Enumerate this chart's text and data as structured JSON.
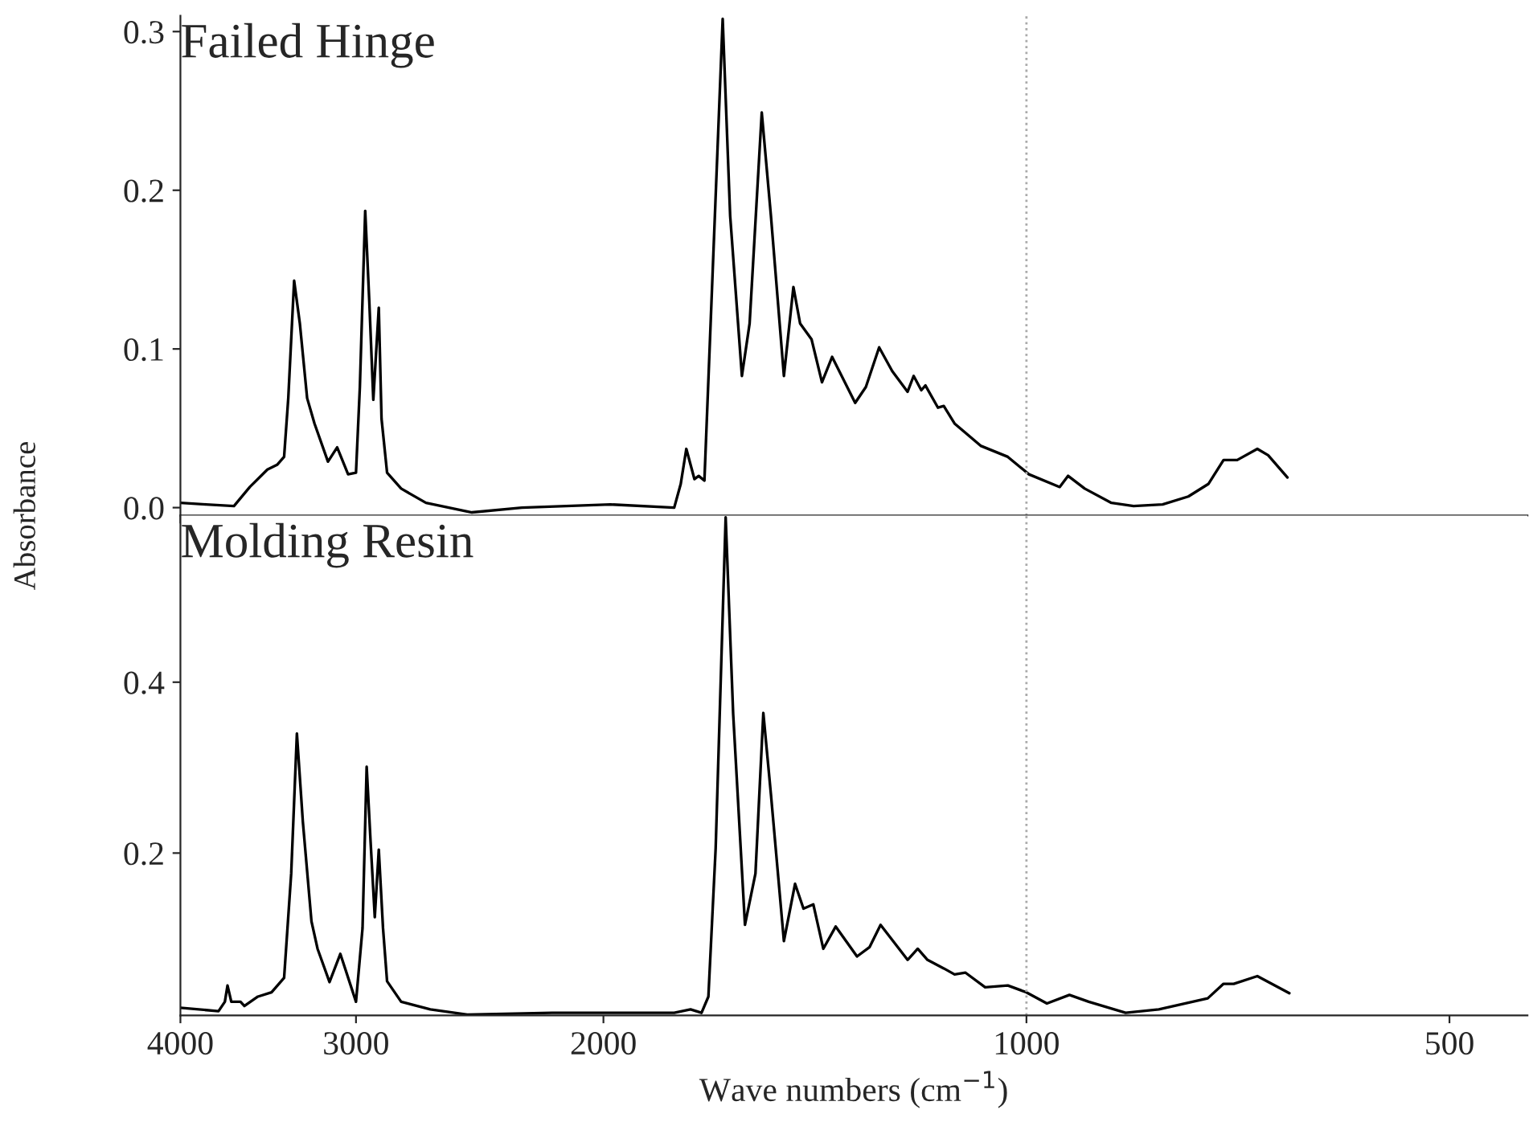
{
  "chart_data": [
    {
      "type": "line",
      "title": "Failed Hinge",
      "ylabel": "Absorbance",
      "log": "x",
      "xlim": [
        4000,
        440
      ],
      "xticks": [
        4000,
        3000,
        2000,
        1000,
        500
      ],
      "ylim": [
        -0.005,
        0.31
      ],
      "yticks": [
        {
          "value": 0,
          "label": "0.0"
        },
        0.1,
        0.2,
        0.3
      ],
      "tick_labels": "y",
      "grid": false,
      "legend": false,
      "ref_lines": [
        {
          "axis": "x",
          "value": 1000,
          "color": "#aaaaaa",
          "line_style": "dotted"
        }
      ],
      "series": [
        {
          "color": "#000000",
          "x": [
            4000,
            3836,
            3664,
            3570,
            3469,
            3414,
            3375,
            3352,
            3320,
            3289,
            3250,
            3211,
            3141,
            3094,
            3039,
            3000,
            2981,
            2955,
            2935,
            2916,
            2890,
            2877,
            2851,
            2786,
            2675,
            2481,
            2286,
            1977,
            1781,
            1762,
            1746,
            1723,
            1711,
            1695,
            1672,
            1645,
            1625,
            1594,
            1574,
            1543,
            1520,
            1488,
            1465,
            1449,
            1422,
            1398,
            1375,
            1324,
            1301,
            1273,
            1246,
            1215,
            1203,
            1188,
            1180,
            1156,
            1145,
            1125,
            1078,
            1031,
            996,
            947,
            934,
            909,
            870,
            839,
            800,
            767,
            742,
            724,
            708,
            685,
            673,
            652
          ],
          "values": [
            0.003,
            0.002,
            0.001,
            0.013,
            0.024,
            0.027,
            0.032,
            0.069,
            0.143,
            0.116,
            0.069,
            0.053,
            0.029,
            0.038,
            0.021,
            0.022,
            0.076,
            0.187,
            0.129,
            0.068,
            0.126,
            0.056,
            0.022,
            0.012,
            0.003,
            -0.003,
            0.0,
            0.002,
            0.0,
            0.015,
            0.037,
            0.018,
            0.02,
            0.017,
            0.15,
            0.308,
            0.184,
            0.083,
            0.116,
            0.249,
            0.184,
            0.083,
            0.139,
            0.116,
            0.106,
            0.079,
            0.095,
            0.066,
            0.076,
            0.101,
            0.086,
            0.073,
            0.083,
            0.074,
            0.077,
            0.063,
            0.064,
            0.053,
            0.039,
            0.032,
            0.021,
            0.013,
            0.02,
            0.012,
            0.003,
            0.001,
            0.002,
            0.007,
            0.015,
            0.03,
            0.03,
            0.037,
            0.033,
            0.019
          ]
        }
      ]
    },
    {
      "type": "line",
      "title": "Molding Resin",
      "xlabel": "Wave numbers (cm$^{−1}$)",
      "log": "x",
      "xlim": [
        4000,
        440
      ],
      "xticks": [
        4000,
        3000,
        2000,
        1000,
        500
      ],
      "ylim": [
        0.01,
        0.595
      ],
      "yticks": [
        0.2,
        0.4
      ],
      "grid": false,
      "legend": false,
      "ref_lines": [
        {
          "axis": "x",
          "value": 1000,
          "color": "#aaaaaa",
          "line_style": "dotted"
        }
      ],
      "series": [
        {
          "color": "#000000",
          "x": [
            4000,
            3758,
            3719,
            3703,
            3680,
            3625,
            3602,
            3523,
            3445,
            3375,
            3336,
            3305,
            3273,
            3227,
            3195,
            3133,
            3078,
            3000,
            2968,
            2948,
            2929,
            2909,
            2890,
            2870,
            2851,
            2786,
            2656,
            2500,
            2175,
            1781,
            1734,
            1703,
            1684,
            1664,
            1637,
            1617,
            1586,
            1559,
            1539,
            1520,
            1488,
            1461,
            1441,
            1418,
            1395,
            1367,
            1320,
            1293,
            1270,
            1215,
            1195,
            1176,
            1145,
            1125,
            1105,
            1070,
            1031,
            1000,
            967,
            932,
            903,
            850,
            805,
            743,
            724,
            712,
            685,
            650
          ],
          "values": [
            0.019,
            0.015,
            0.026,
            0.045,
            0.026,
            0.026,
            0.021,
            0.032,
            0.037,
            0.054,
            0.176,
            0.34,
            0.237,
            0.12,
            0.088,
            0.049,
            0.082,
            0.026,
            0.112,
            0.301,
            0.213,
            0.125,
            0.204,
            0.112,
            0.05,
            0.026,
            0.017,
            0.011,
            0.013,
            0.013,
            0.017,
            0.013,
            0.032,
            0.206,
            0.593,
            0.363,
            0.116,
            0.176,
            0.364,
            0.269,
            0.097,
            0.164,
            0.135,
            0.14,
            0.088,
            0.114,
            0.079,
            0.09,
            0.116,
            0.075,
            0.088,
            0.075,
            0.065,
            0.058,
            0.06,
            0.043,
            0.045,
            0.037,
            0.024,
            0.034,
            0.026,
            0.013,
            0.017,
            0.03,
            0.047,
            0.047,
            0.056,
            0.036
          ]
        }
      ]
    }
  ]
}
